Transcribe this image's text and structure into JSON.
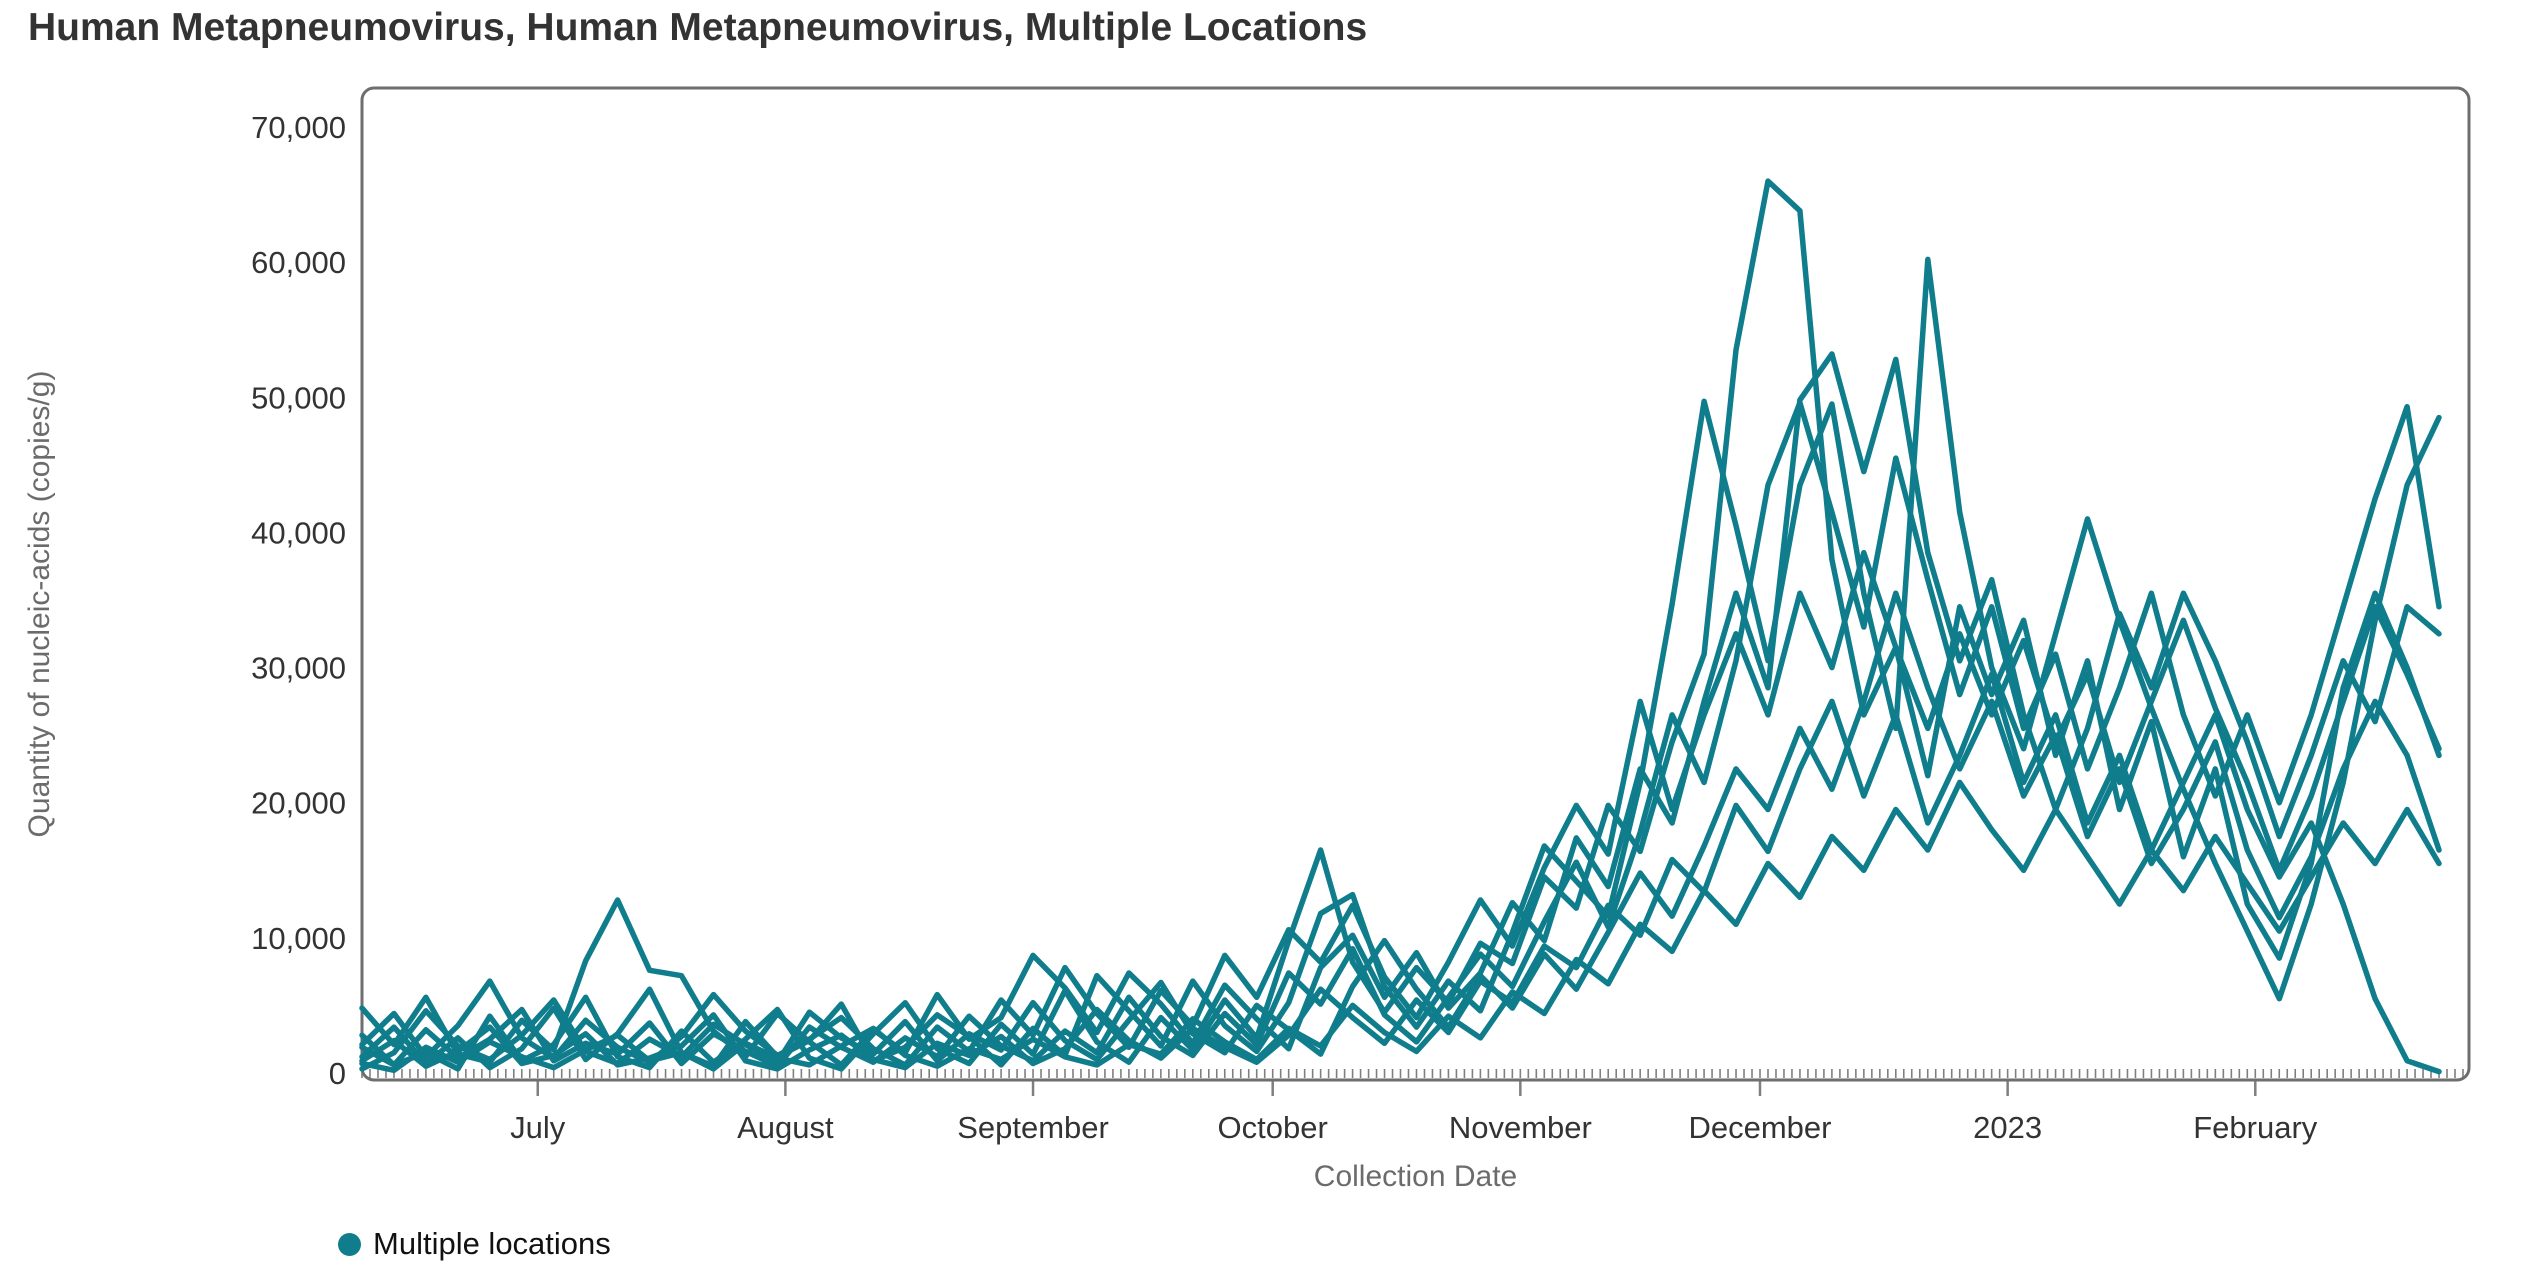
{
  "chart_data": {
    "type": "line",
    "title": "Human Metapneumovirus, Human Metapneumovirus, Multiple Locations",
    "xlabel": "Collection Date",
    "ylabel": "Quantity of nucleic-acids (copies/g)",
    "ylim": [
      0,
      73000
    ],
    "y_ticks": [
      0,
      10000,
      20000,
      30000,
      40000,
      50000,
      60000,
      70000
    ],
    "x_tick_labels": [
      "July",
      "August",
      "September",
      "October",
      "November",
      "December",
      "2023",
      "February"
    ],
    "x_tick_days": [
      22,
      53,
      84,
      114,
      145,
      175,
      206,
      237
    ],
    "x_total_days": 262,
    "minor_tick_every_days": 1,
    "grid": "off",
    "legend_position": "bottom-left",
    "line_color": "#0f7d8c",
    "legend": [
      {
        "label": "Multiple locations",
        "color": "#0f7d8c"
      }
    ],
    "series": [
      {
        "name": "line-1",
        "step_days": 4,
        "values": [
          2800,
          600,
          1500,
          300,
          4200,
          900,
          2100,
          5600,
          1200,
          400,
          3100,
          800,
          2500,
          4700,
          1100,
          300,
          2900,
          5200,
          1800,
          700,
          3600,
          1400,
          6100,
          2300,
          800,
          4100,
          1700,
          5400,
          2600,
          9800,
          16500,
          8200,
          4500,
          7800,
          5200,
          9600,
          8100,
          14500,
          12200,
          19800,
          16400,
          24500,
          31000,
          53500,
          66000,
          63800,
          38000,
          26500,
          31500,
          22000,
          34500,
          28000,
          33500,
          23500,
          30500,
          19500,
          26000,
          16000,
          22500,
          12500,
          8500,
          15500,
          28500,
          35500,
          30000,
          23500
        ]
      },
      {
        "name": "line-2",
        "step_days": 4,
        "values": [
          1200,
          3400,
          700,
          2600,
          400,
          1800,
          4800,
          1000,
          2900,
          6200,
          1500,
          500,
          3800,
          1200,
          2400,
          5100,
          900,
          1900,
          4300,
          2700,
          600,
          3300,
          1300,
          7200,
          4600,
          2000,
          6800,
          3500,
          1600,
          5200,
          11800,
          13200,
          6400,
          3400,
          6800,
          4600,
          10400,
          16800,
          14200,
          11600,
          21500,
          34700,
          49700,
          40500,
          30500,
          43500,
          49500,
          35500,
          25500,
          60200,
          41500,
          30000,
          24000,
          32500,
          41000,
          33500,
          27000,
          21000,
          15500,
          10500,
          5500,
          12500,
          21500,
          33500,
          43500,
          48500
        ]
      },
      {
        "name": "line-3",
        "step_days": 4,
        "values": [
          4800,
          2100,
          5600,
          1400,
          800,
          3900,
          1700,
          8300,
          12800,
          7600,
          7200,
          3100,
          1200,
          4400,
          2300,
          600,
          3200,
          1500,
          5800,
          2500,
          4100,
          8700,
          6300,
          3000,
          7400,
          5100,
          2200,
          6500,
          4000,
          1800,
          7800,
          10200,
          5600,
          8900,
          4800,
          7400,
          12600,
          9800,
          17400,
          13800,
          22500,
          18500,
          27500,
          35500,
          28500,
          49800,
          53200,
          44500,
          52800,
          38500,
          30500,
          36500,
          26500,
          19500,
          25500,
          34000,
          28500,
          35500,
          30500,
          24500,
          17500,
          23500,
          30500,
          26000,
          34500,
          32500
        ]
      },
      {
        "name": "line-4",
        "step_days": 4,
        "values": [
          900,
          2400,
          500,
          1600,
          3400,
          700,
          1300,
          2900,
          600,
          1100,
          2000,
          4300,
          900,
          300,
          1700,
          2800,
          1000,
          400,
          2200,
          1300,
          2700,
          700,
          1800,
          4700,
          2400,
          1100,
          3300,
          1900,
          800,
          2800,
          6200,
          4100,
          2200,
          5400,
          3000,
          6800,
          5200,
          9400,
          7800,
          12400,
          10200,
          15800,
          13400,
          19800,
          16400,
          22500,
          27500,
          20500,
          26500,
          18500,
          23500,
          29500,
          21500,
          26500,
          18500,
          23500,
          16500,
          21500,
          26500,
          19500,
          14500,
          18500,
          12500,
          5500,
          900,
          100
        ]
      },
      {
        "name": "line-5",
        "step_days": 4,
        "values": [
          1900,
          600,
          3200,
          1100,
          2500,
          4700,
          900,
          2200,
          1400,
          3700,
          700,
          2900,
          1600,
          500,
          3400,
          1900,
          800,
          2600,
          1200,
          4200,
          2000,
          900,
          3100,
          1500,
          5600,
          2700,
          1300,
          4400,
          2100,
          7400,
          5100,
          9200,
          4300,
          2300,
          5600,
          8800,
          6400,
          11200,
          15600,
          10800,
          17800,
          26500,
          21500,
          30500,
          43500,
          49600,
          41500,
          33000,
          45500,
          36500,
          28000,
          34500,
          25500,
          31000,
          22500,
          28500,
          35500,
          26500,
          20500,
          26500,
          20000,
          26500,
          34500,
          42500,
          49300,
          34500
        ]
      },
      {
        "name": "line-6",
        "step_days": 4,
        "values": [
          300,
          1500,
          4600,
          2000,
          1000,
          2800,
          5400,
          1600,
          700,
          2500,
          1200,
          3600,
          2100,
          800,
          4500,
          2600,
          1400,
          3800,
          900,
          2900,
          1700,
          5200,
          2400,
          1000,
          3900,
          6700,
          2900,
          1500,
          5000,
          3200,
          1400,
          6400,
          9800,
          6200,
          3400,
          7200,
          4800,
          8800,
          6200,
          10400,
          14800,
          11600,
          16800,
          22500,
          19500,
          25500,
          21000,
          27500,
          35500,
          28500,
          22500,
          27500,
          20500,
          25000,
          17500,
          22500,
          15500,
          19500,
          24500,
          16500,
          11500,
          16000,
          22500,
          27500,
          23500,
          16500
        ]
      },
      {
        "name": "line-7",
        "step_days": 4,
        "values": [
          2100,
          4400,
          1200,
          3500,
          6800,
          2600,
          1100,
          3900,
          1900,
          800,
          2700,
          5800,
          3100,
          1300,
          2500,
          4100,
          1800,
          600,
          3400,
          1600,
          5400,
          2800,
          7800,
          4400,
          1900,
          6100,
          3500,
          8700,
          5600,
          10600,
          8200,
          12400,
          7100,
          4100,
          8200,
          12800,
          9400,
          15200,
          19800,
          16200,
          27500,
          19500,
          26500,
          32500,
          26500,
          35500,
          30000,
          38500,
          31500,
          25500,
          32500,
          26500,
          32000,
          24500,
          29500,
          21500,
          27500,
          33500,
          27000,
          21500,
          15000,
          20500,
          27500,
          34500,
          29500,
          24000
        ]
      },
      {
        "name": "line-8",
        "step_days": 4,
        "values": [
          700,
          200,
          1900,
          800,
          2300,
          1200,
          400,
          1700,
          2800,
          900,
          1500,
          300,
          2200,
          1100,
          600,
          2000,
          3300,
          1300,
          500,
          1800,
          1000,
          2500,
          1200,
          600,
          2100,
          1400,
          4000,
          2300,
          1000,
          3300,
          2000,
          5000,
          3000,
          1600,
          4200,
          2600,
          6000,
          4400,
          8400,
          6600,
          11000,
          9000,
          13500,
          11000,
          15500,
          13000,
          17500,
          15000,
          19500,
          16500,
          21500,
          18000,
          15000,
          19500,
          16000,
          12500,
          16500,
          13500,
          17500,
          14000,
          10500,
          14500,
          18500,
          15500,
          19500,
          15500
        ]
      }
    ]
  },
  "colors": {
    "line": "#0f7d8c",
    "axis_border": "#6e6e6e",
    "tick": "#7f7f7f",
    "tick_label": "#333333",
    "muted_label": "#6b6b6b",
    "title": "#333333"
  }
}
